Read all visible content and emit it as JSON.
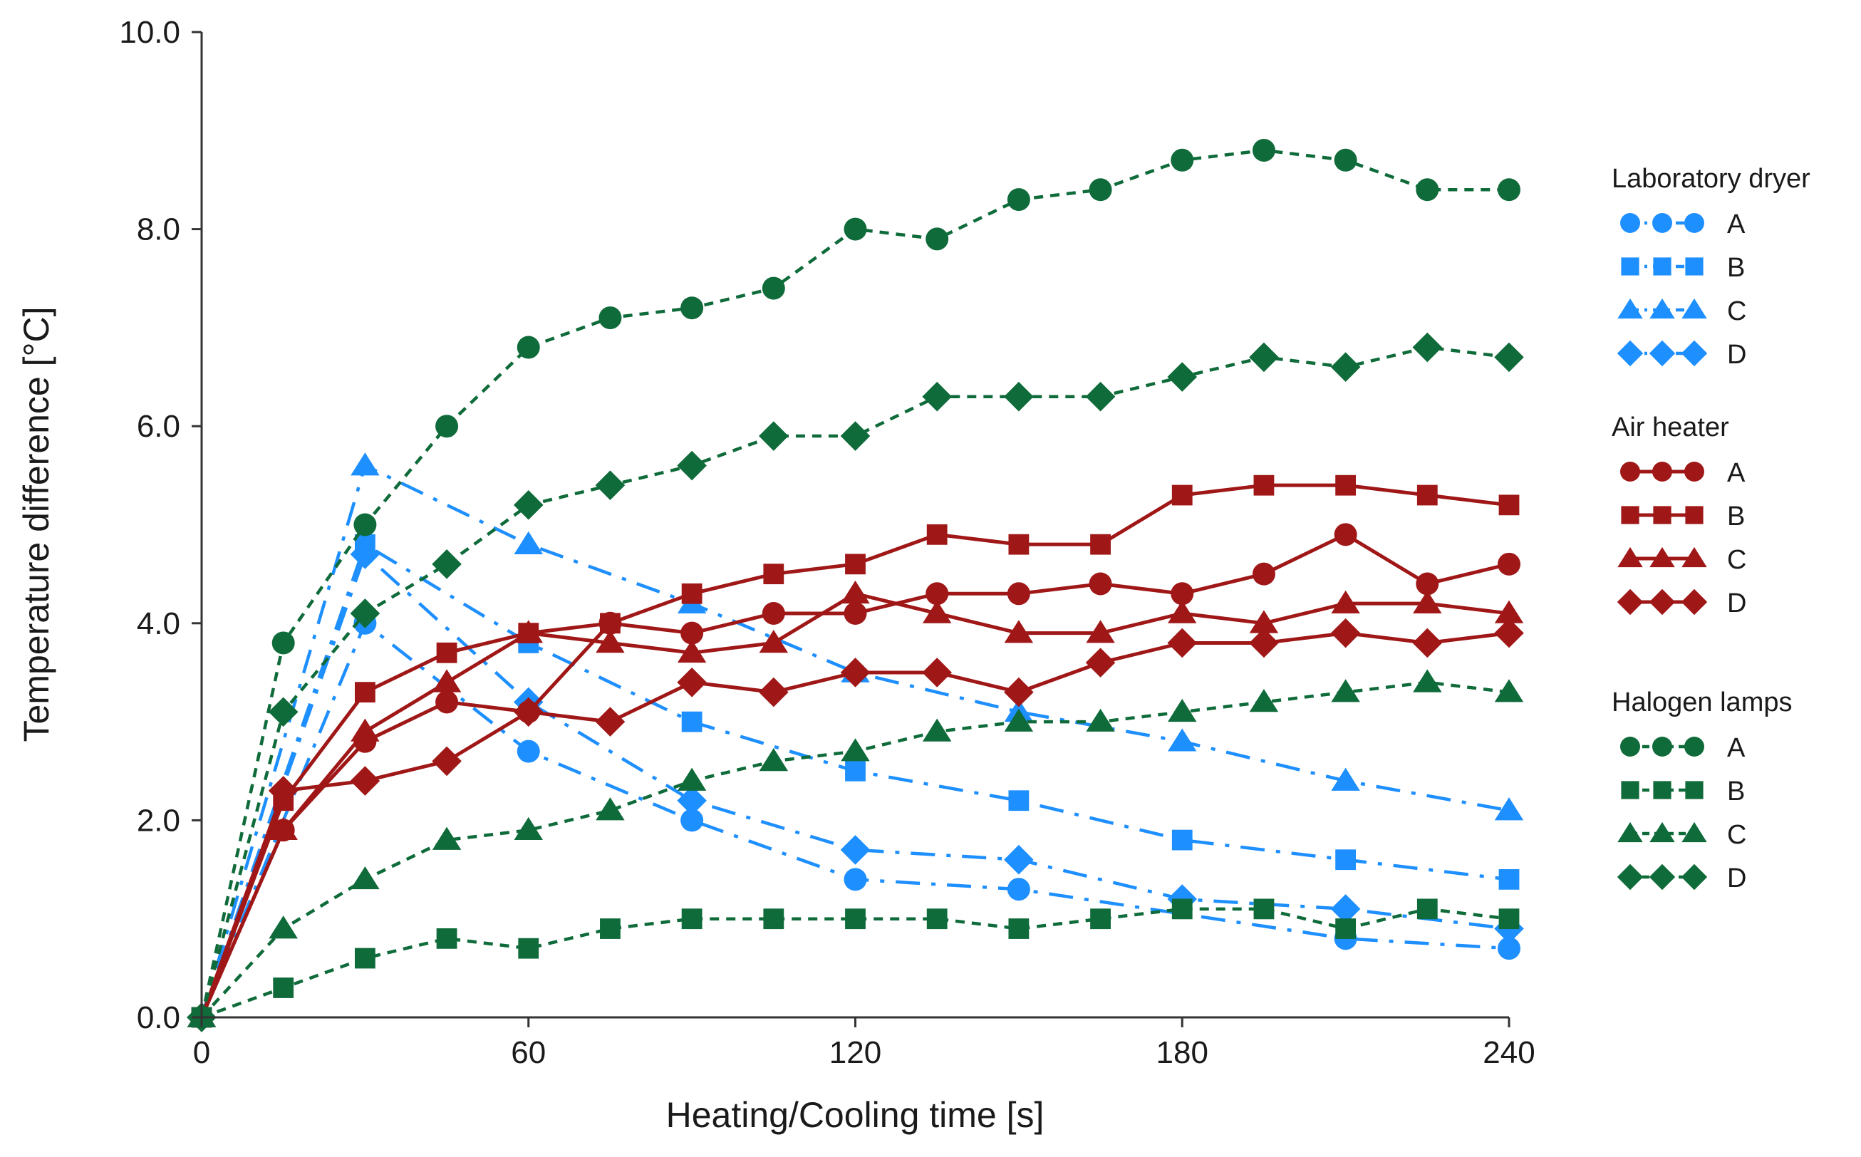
{
  "chart_data": {
    "type": "line",
    "xlabel": "Heating/Cooling time [s]",
    "ylabel": "Temperature difference [°C]",
    "xlim": [
      0,
      240
    ],
    "ylim": [
      0,
      10
    ],
    "x_ticks": [
      "0",
      "60",
      "120",
      "180",
      "240"
    ],
    "y_ticks": [
      "0.0",
      "2.0",
      "4.0",
      "6.0",
      "8.0",
      "10.0"
    ],
    "grid": false,
    "legend_position": "right",
    "groups": [
      {
        "title": "Laboratory dryer",
        "color": "#1e8fff",
        "line_style": "dash-dot",
        "series": [
          {
            "name": "A",
            "marker": "circle",
            "points": [
              [
                0,
                0
              ],
              [
                30,
                4.0
              ],
              [
                60,
                2.7
              ],
              [
                90,
                2.0
              ],
              [
                120,
                1.4
              ],
              [
                150,
                1.3
              ],
              [
                210,
                0.8
              ],
              [
                240,
                0.7
              ]
            ]
          },
          {
            "name": "B",
            "marker": "square",
            "points": [
              [
                0,
                0
              ],
              [
                30,
                4.8
              ],
              [
                60,
                3.8
              ],
              [
                90,
                3.0
              ],
              [
                120,
                2.5
              ],
              [
                150,
                2.2
              ],
              [
                180,
                1.8
              ],
              [
                210,
                1.6
              ],
              [
                240,
                1.4
              ]
            ]
          },
          {
            "name": "C",
            "marker": "triangle",
            "points": [
              [
                0,
                0
              ],
              [
                30,
                5.6
              ],
              [
                60,
                4.8
              ],
              [
                90,
                4.2
              ],
              [
                120,
                3.5
              ],
              [
                150,
                3.1
              ],
              [
                180,
                2.8
              ],
              [
                210,
                2.4
              ],
              [
                240,
                2.1
              ]
            ]
          },
          {
            "name": "D",
            "marker": "diamond",
            "points": [
              [
                0,
                0
              ],
              [
                30,
                4.7
              ],
              [
                60,
                3.2
              ],
              [
                90,
                2.2
              ],
              [
                120,
                1.7
              ],
              [
                150,
                1.6
              ],
              [
                180,
                1.2
              ],
              [
                210,
                1.1
              ],
              [
                240,
                0.9
              ]
            ]
          }
        ]
      },
      {
        "title": "Air heater",
        "color": "#a01717",
        "line_style": "solid",
        "series": [
          {
            "name": "A",
            "marker": "circle",
            "points": [
              [
                0,
                0
              ],
              [
                15,
                1.9
              ],
              [
                30,
                2.8
              ],
              [
                45,
                3.2
              ],
              [
                60,
                3.1
              ],
              [
                75,
                4.0
              ],
              [
                90,
                3.9
              ],
              [
                105,
                4.1
              ],
              [
                120,
                4.1
              ],
              [
                135,
                4.3
              ],
              [
                150,
                4.3
              ],
              [
                165,
                4.4
              ],
              [
                180,
                4.3
              ],
              [
                195,
                4.5
              ],
              [
                210,
                4.9
              ],
              [
                225,
                4.4
              ],
              [
                240,
                4.6
              ]
            ]
          },
          {
            "name": "B",
            "marker": "square",
            "points": [
              [
                0,
                0
              ],
              [
                15,
                2.2
              ],
              [
                30,
                3.3
              ],
              [
                45,
                3.7
              ],
              [
                60,
                3.9
              ],
              [
                75,
                4.0
              ],
              [
                90,
                4.3
              ],
              [
                105,
                4.5
              ],
              [
                120,
                4.6
              ],
              [
                135,
                4.9
              ],
              [
                150,
                4.8
              ],
              [
                165,
                4.8
              ],
              [
                180,
                5.3
              ],
              [
                195,
                5.4
              ],
              [
                210,
                5.4
              ],
              [
                225,
                5.3
              ],
              [
                240,
                5.2
              ]
            ]
          },
          {
            "name": "C",
            "marker": "triangle",
            "points": [
              [
                0,
                0
              ],
              [
                15,
                1.9
              ],
              [
                30,
                2.9
              ],
              [
                45,
                3.4
              ],
              [
                60,
                3.9
              ],
              [
                75,
                3.8
              ],
              [
                90,
                3.7
              ],
              [
                105,
                3.8
              ],
              [
                120,
                4.3
              ],
              [
                135,
                4.1
              ],
              [
                150,
                3.9
              ],
              [
                165,
                3.9
              ],
              [
                180,
                4.1
              ],
              [
                195,
                4.0
              ],
              [
                210,
                4.2
              ],
              [
                225,
                4.2
              ],
              [
                240,
                4.1
              ]
            ]
          },
          {
            "name": "D",
            "marker": "diamond",
            "points": [
              [
                0,
                0
              ],
              [
                15,
                2.3
              ],
              [
                30,
                2.4
              ],
              [
                45,
                2.6
              ],
              [
                60,
                3.1
              ],
              [
                75,
                3.0
              ],
              [
                90,
                3.4
              ],
              [
                105,
                3.3
              ],
              [
                120,
                3.5
              ],
              [
                135,
                3.5
              ],
              [
                150,
                3.3
              ],
              [
                165,
                3.6
              ],
              [
                180,
                3.8
              ],
              [
                195,
                3.8
              ],
              [
                210,
                3.9
              ],
              [
                225,
                3.8
              ],
              [
                240,
                3.9
              ]
            ]
          }
        ]
      },
      {
        "title": "Halogen lamps",
        "color": "#0f6b3a",
        "line_style": "dashed",
        "series": [
          {
            "name": "A",
            "marker": "circle",
            "points": [
              [
                0,
                0
              ],
              [
                15,
                3.8
              ],
              [
                30,
                5.0
              ],
              [
                45,
                6.0
              ],
              [
                60,
                6.8
              ],
              [
                75,
                7.1
              ],
              [
                90,
                7.2
              ],
              [
                105,
                7.4
              ],
              [
                120,
                8.0
              ],
              [
                135,
                7.9
              ],
              [
                150,
                8.3
              ],
              [
                165,
                8.4
              ],
              [
                180,
                8.7
              ],
              [
                195,
                8.8
              ],
              [
                210,
                8.7
              ],
              [
                225,
                8.4
              ],
              [
                240,
                8.4
              ]
            ]
          },
          {
            "name": "B",
            "marker": "square",
            "points": [
              [
                0,
                0
              ],
              [
                15,
                0.3
              ],
              [
                30,
                0.6
              ],
              [
                45,
                0.8
              ],
              [
                60,
                0.7
              ],
              [
                75,
                0.9
              ],
              [
                90,
                1.0
              ],
              [
                105,
                1.0
              ],
              [
                120,
                1.0
              ],
              [
                135,
                1.0
              ],
              [
                150,
                0.9
              ],
              [
                165,
                1.0
              ],
              [
                180,
                1.1
              ],
              [
                195,
                1.1
              ],
              [
                210,
                0.9
              ],
              [
                225,
                1.1
              ],
              [
                240,
                1.0
              ]
            ]
          },
          {
            "name": "C",
            "marker": "triangle",
            "points": [
              [
                0,
                0
              ],
              [
                15,
                0.9
              ],
              [
                30,
                1.4
              ],
              [
                45,
                1.8
              ],
              [
                60,
                1.9
              ],
              [
                75,
                2.1
              ],
              [
                90,
                2.4
              ],
              [
                105,
                2.6
              ],
              [
                120,
                2.7
              ],
              [
                135,
                2.9
              ],
              [
                150,
                3.0
              ],
              [
                165,
                3.0
              ],
              [
                180,
                3.1
              ],
              [
                195,
                3.2
              ],
              [
                210,
                3.3
              ],
              [
                225,
                3.4
              ],
              [
                240,
                3.3
              ]
            ]
          },
          {
            "name": "D",
            "marker": "diamond",
            "points": [
              [
                0,
                0
              ],
              [
                15,
                3.1
              ],
              [
                30,
                4.1
              ],
              [
                45,
                4.6
              ],
              [
                60,
                5.2
              ],
              [
                75,
                5.4
              ],
              [
                90,
                5.6
              ],
              [
                105,
                5.9
              ],
              [
                120,
                5.9
              ],
              [
                135,
                6.3
              ],
              [
                150,
                6.3
              ],
              [
                165,
                6.3
              ],
              [
                180,
                6.5
              ],
              [
                195,
                6.7
              ],
              [
                210,
                6.6
              ],
              [
                225,
                6.8
              ],
              [
                240,
                6.7
              ]
            ]
          }
        ]
      }
    ]
  }
}
